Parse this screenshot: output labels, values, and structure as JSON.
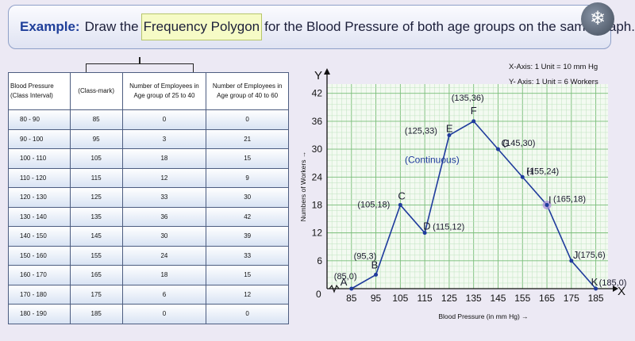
{
  "header": {
    "prefix": "Example:",
    "before": "Draw the",
    "highlight": "Frequency Polygon",
    "after": "for the Blood Pressure of both age groups on the same graph."
  },
  "table": {
    "headers": [
      "Blood Pressure\n(Class Interval)",
      "(Class-mark)",
      "Number of Employees in\nAge group of 25 to 40",
      "Number of Employees in\nAge group of 40 to 60"
    ],
    "rows": [
      [
        "80 - 90",
        "85",
        "0",
        "0"
      ],
      [
        "90 - 100",
        "95",
        "3",
        "21"
      ],
      [
        "100 - 110",
        "105",
        "18",
        "15"
      ],
      [
        "110 - 120",
        "115",
        "12",
        "9"
      ],
      [
        "120 - 130",
        "125",
        "33",
        "30"
      ],
      [
        "130 - 140",
        "135",
        "36",
        "42"
      ],
      [
        "140 - 150",
        "145",
        "30",
        "39"
      ],
      [
        "150 - 160",
        "155",
        "24",
        "33"
      ],
      [
        "160 - 170",
        "165",
        "18",
        "15"
      ],
      [
        "170 - 180",
        "175",
        "6",
        "12"
      ],
      [
        "180 - 190",
        "185",
        "0",
        "0"
      ]
    ]
  },
  "scale_notes": {
    "x": "X-Axis: 1 Unit = 10 mm Hg",
    "y": "Y- Axis: 1 Unit = 6 Workers"
  },
  "chart_data": {
    "type": "line",
    "title": "",
    "xlabel": "Blood Pressure (in mm Hg)",
    "ylabel": "Numbers of Workers",
    "x_axis_letter": "X",
    "y_axis_letter": "Y",
    "origin_label": "0",
    "x_ticks": [
      85,
      95,
      105,
      115,
      125,
      135,
      145,
      155,
      165,
      175,
      185
    ],
    "y_ticks": [
      6,
      12,
      18,
      24,
      30,
      36,
      42
    ],
    "xlim": [
      75,
      190
    ],
    "ylim": [
      0,
      44
    ],
    "grid": true,
    "series": [
      {
        "name": "Age group of 25 to 40",
        "color": "#1f3b9c",
        "points": [
          {
            "name": "A",
            "x": 85,
            "y": 0,
            "label": "(85,0)"
          },
          {
            "name": "B",
            "x": 95,
            "y": 3,
            "label": "(95,3)"
          },
          {
            "name": "C",
            "x": 105,
            "y": 18,
            "label": "(105,18)"
          },
          {
            "name": "D",
            "x": 115,
            "y": 12,
            "label": "(115,12)"
          },
          {
            "name": "E",
            "x": 125,
            "y": 33,
            "label": "(125,33)"
          },
          {
            "name": "F",
            "x": 135,
            "y": 36,
            "label": "(135,36)"
          },
          {
            "name": "G",
            "x": 145,
            "y": 30,
            "label": "(145,30)"
          },
          {
            "name": "H",
            "x": 155,
            "y": 24,
            "label": "(155,24)"
          },
          {
            "name": "I",
            "x": 165,
            "y": 18,
            "label": "(165,18)"
          },
          {
            "name": "J",
            "x": 175,
            "y": 6,
            "label": "(175,6)"
          },
          {
            "name": "K",
            "x": 185,
            "y": 0,
            "label": "(185,0)"
          }
        ]
      }
    ],
    "annotations": [
      {
        "text": "(Continuous)",
        "x": 118,
        "y": 27
      }
    ],
    "colors": {
      "line": "#1f3b9c",
      "grid_minor": "#bfe3bf",
      "grid_major": "#79bd79",
      "highlight": "#a98fd8"
    }
  }
}
